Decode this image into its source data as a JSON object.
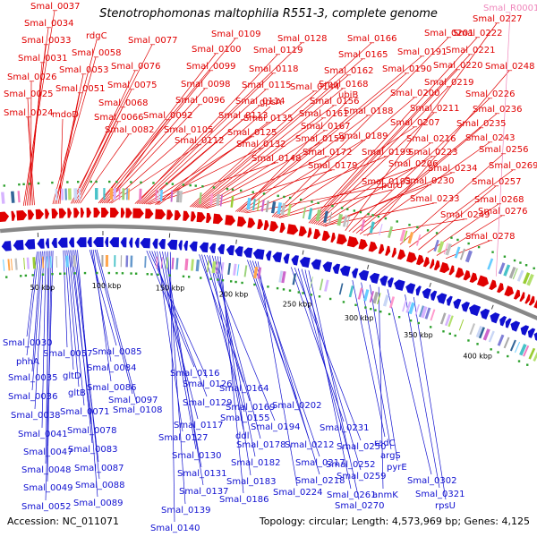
{
  "title": "Stenotrophomonas maltophilia R551-3, complete genome",
  "accession_label": "Accession: NC_011071",
  "summary": "Topology: circular; Length: 4,573,969 bp; Genes: 4,125",
  "ticks": [
    "50 kbp",
    "100 kbp",
    "150 kbp",
    "200 kbp",
    "250 kbp",
    "300 kbp",
    "350 kbp",
    "400 kbp"
  ],
  "colors": {
    "forward": "#e00000",
    "reverse": "#1010d0",
    "rna": "#ef86bb",
    "backbone": "#888888"
  },
  "forward_labels": [
    "Smal_0037",
    "Smal_0034",
    "Smal_0033",
    "Smal_0031",
    "Smal_0026",
    "Smal_0025",
    "Smal_0024",
    "rdgC",
    "Smal_0058",
    "Smal_0053",
    "Smal_0051",
    "mdoD",
    "Smal_0077",
    "Smal_0076",
    "Smal_0075",
    "Smal_0068",
    "Smal_0066",
    "Smal_0082",
    "Smal_0109",
    "Smal_0100",
    "Smal_0099",
    "Smal_0098",
    "Smal_0096",
    "Smal_0092",
    "Smal_0105",
    "Smal_0112",
    "Smal_0128",
    "Smal_0119",
    "Smal_0118",
    "Smal_0115",
    "Smal_0114",
    "Smal_0113",
    "Smal_0125",
    "Smal_0132",
    "Smal_0148",
    "Smal_0144",
    "gpsA",
    "Smal_0135",
    "Smal_0166",
    "Smal_0165",
    "Smal_0162",
    "Smal_0168",
    "Smal_0156",
    "Smal_0161",
    "Smal_0167",
    "Smal_0159",
    "Smal_0172",
    "Smal_0179",
    "Smal_0191",
    "Smal_0190",
    "ubiB",
    "Smal_0188",
    "Smal_0189",
    "Smal_0199",
    "Smal_0193",
    "Smal_0201",
    "Smal_0200",
    "Smal_0207",
    "Smal_0206",
    "purU",
    "Smal_0222",
    "Smal_0221",
    "Smal_0220",
    "Smal_0219",
    "Smal_0211",
    "Smal_0216",
    "Smal_0223",
    "Smal_0230",
    "Smal_0233",
    "Smal_0234",
    "Smal_0227",
    "Smal_0226",
    "Smal_0236",
    "Smal_0235",
    "Smal_0243",
    "Smal_0249",
    "Smal_0248",
    "Smal_0256",
    "Smal_0269",
    "Smal_0257",
    "Smal_0268",
    "Smal_0276",
    "Smal_0278"
  ],
  "rna_labels": [
    "Smal_R0001"
  ],
  "reverse_labels": [
    "Smal_0030",
    "phhA",
    "Smal_0035",
    "Smal_0036",
    "Smal_0038",
    "Smal_0041",
    "Smal_0047",
    "Smal_0048",
    "Smal_0049",
    "Smal_0052",
    "Smal_0057",
    "gltD",
    "gltB",
    "Smal_0071",
    "Smal_0078",
    "Smal_0083",
    "Smal_0087",
    "Smal_0088",
    "Smal_0089",
    "Smal_0085",
    "Smal_0084",
    "Smal_0086",
    "Smal_0097",
    "Smal_0108",
    "Smal_0116",
    "Smal_0126",
    "Smal_0129",
    "Smal_0117",
    "Smal_0127",
    "Smal_0130",
    "Smal_0131",
    "Smal_0137",
    "Smal_0139",
    "Smal_0140",
    "Smal_0164",
    "Smal_0155",
    "Smal_0169",
    "Smal_0194",
    "ddl",
    "Smal_0178",
    "Smal_0182",
    "Smal_0183",
    "Smal_0186",
    "Smal_0202",
    "Smal_0212",
    "Smal_0217",
    "Smal_0218",
    "Smal_0224",
    "Smal_0231",
    "Smal_0250",
    "Smal_0252",
    "Smal_0259",
    "Smal_0261",
    "Smal_0270",
    "radC",
    "argS",
    "pyrE",
    "anmK",
    "Smal_0302",
    "Smal_0321",
    "rpsU"
  ]
}
